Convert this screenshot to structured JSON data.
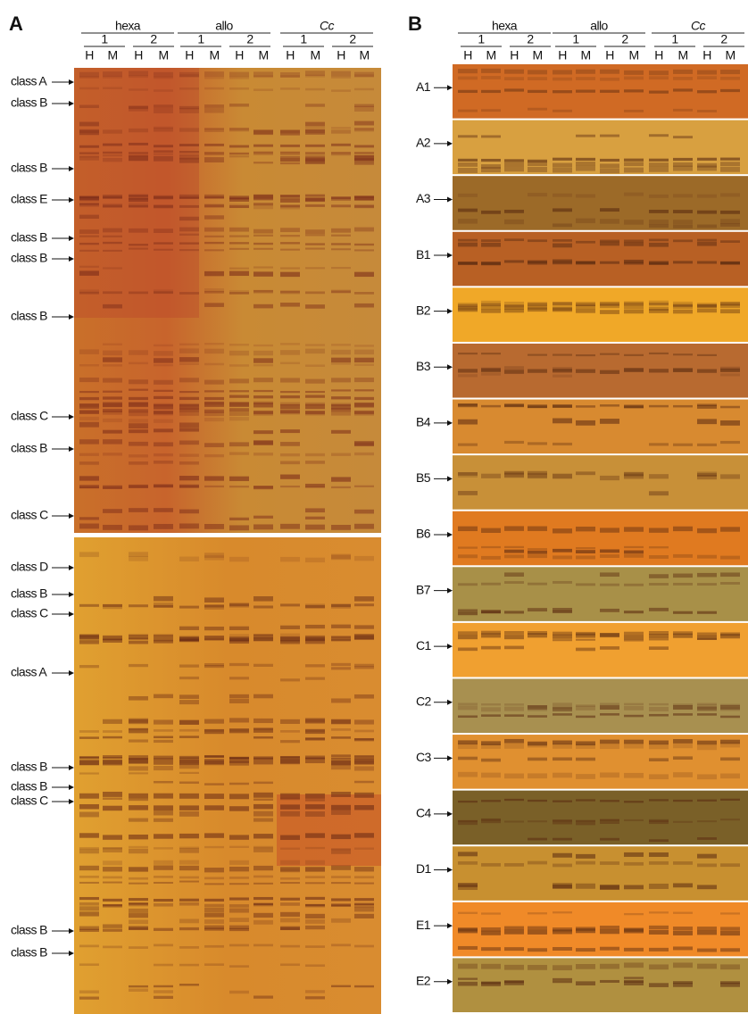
{
  "panels": [
    {
      "label": "A",
      "groups": [
        {
          "name": "hexa",
          "replicates": [
            "1",
            "2"
          ]
        },
        {
          "name": "allo",
          "replicates": [
            "1",
            "2"
          ]
        },
        {
          "name": "Cc",
          "replicates": [
            "1",
            "2"
          ]
        }
      ],
      "lanes": [
        "H",
        "M"
      ],
      "markers": [
        "class A",
        "class B",
        "class B",
        "class E",
        "class B",
        "class B",
        "class B",
        "class C",
        "class B",
        "class C",
        "class D",
        "class B",
        "class C",
        "class A",
        "class B",
        "class B",
        "class C",
        "class B",
        "class B"
      ]
    },
    {
      "label": "B",
      "groups": [
        {
          "name": "hexa",
          "replicates": [
            "1",
            "2"
          ]
        },
        {
          "name": "allo",
          "replicates": [
            "1",
            "2"
          ]
        },
        {
          "name": "Cc",
          "replicates": [
            "1",
            "2"
          ]
        }
      ],
      "lanes": [
        "H",
        "M"
      ],
      "markers": [
        "A1",
        "A2",
        "A3",
        "B1",
        "B2",
        "B3",
        "B4",
        "B5",
        "B6",
        "B7",
        "C1",
        "C2",
        "C3",
        "C4",
        "D1",
        "E1",
        "E2"
      ]
    }
  ]
}
